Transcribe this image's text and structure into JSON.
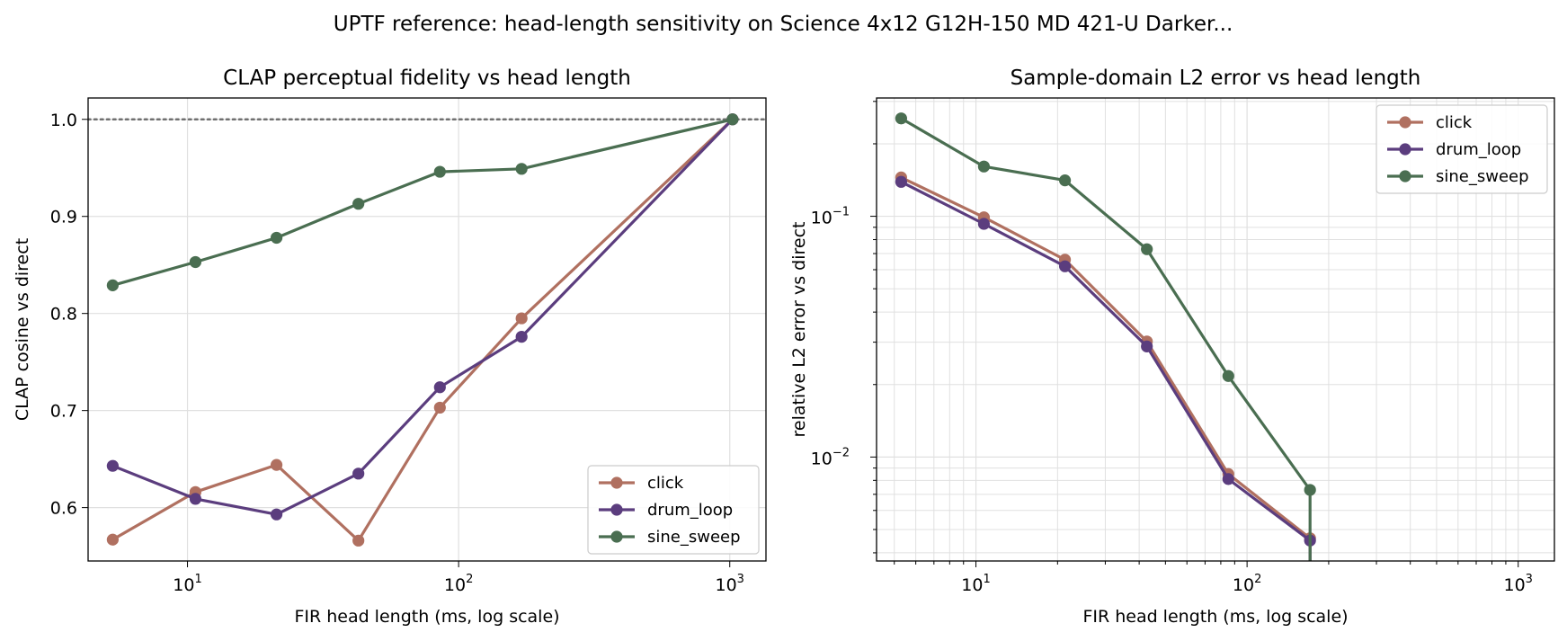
{
  "suptitle": "UPTF reference: head-length sensitivity on Science 4x12 G12H-150 MD 421-U Darker...",
  "colors": {
    "click": "#b07060",
    "drum_loop": "#5b3d7e",
    "sine_sweep": "#4a6e51",
    "reference_line": "#707070",
    "grid": "#e0e0e0"
  },
  "chart_data": [
    {
      "type": "line",
      "title": "CLAP perceptual fidelity vs head length",
      "xlabel": "FIR head length (ms, log scale)",
      "ylabel": "CLAP cosine vs direct",
      "xscale": "log",
      "xlim": [
        4.3,
        1360
      ],
      "ylim": [
        0.545,
        1.022
      ],
      "x_ticks": [
        10,
        100,
        1000
      ],
      "x_tick_labels": [
        [
          "10",
          "1"
        ],
        [
          "10",
          "2"
        ],
        [
          "10",
          "3"
        ]
      ],
      "y_ticks": [
        0.6,
        0.7,
        0.8,
        0.9,
        1.0
      ],
      "y_tick_labels": [
        "0.6",
        "0.7",
        "0.8",
        "0.9",
        "1.0"
      ],
      "reference_line": 1.0,
      "grid": true,
      "legend_position": "bottom-right",
      "x": [
        5.3,
        10.7,
        21.3,
        42.7,
        85.3,
        170.7,
        1024
      ],
      "series": [
        {
          "name": "click",
          "color": "#b07060",
          "values": [
            0.567,
            0.616,
            0.644,
            0.566,
            0.703,
            0.795,
            1.0
          ]
        },
        {
          "name": "drum_loop",
          "color": "#5b3d7e",
          "values": [
            0.643,
            0.609,
            0.593,
            0.635,
            0.724,
            0.776,
            1.0
          ]
        },
        {
          "name": "sine_sweep",
          "color": "#4a6e51",
          "values": [
            0.829,
            0.853,
            0.878,
            0.913,
            0.946,
            0.949,
            1.0
          ]
        }
      ]
    },
    {
      "type": "line",
      "title": "Sample-domain L2 error vs head length",
      "xlabel": "FIR head length (ms, log scale)",
      "ylabel": "relative L2 error vs direct",
      "xscale": "log",
      "yscale": "log",
      "xlim": [
        4.3,
        1360
      ],
      "ylim": [
        0.0037,
        0.31
      ],
      "x_ticks": [
        10,
        100,
        1000
      ],
      "x_tick_labels": [
        [
          "10",
          "1"
        ],
        [
          "10",
          "2"
        ],
        [
          "10",
          "3"
        ]
      ],
      "y_ticks": [
        0.01,
        0.1
      ],
      "y_tick_labels": [
        [
          "10",
          "−2"
        ],
        [
          "10",
          "−1"
        ]
      ],
      "grid": true,
      "legend_position": "top-right",
      "x": [
        5.3,
        10.7,
        21.3,
        42.7,
        85.3,
        170.7
      ],
      "series": [
        {
          "name": "click",
          "color": "#b07060",
          "values": [
            0.145,
            0.099,
            0.066,
            0.0302,
            0.0085,
            0.0046
          ]
        },
        {
          "name": "drum_loop",
          "color": "#5b3d7e",
          "values": [
            0.139,
            0.093,
            0.062,
            0.0288,
            0.0081,
            0.0045
          ]
        },
        {
          "name": "sine_sweep",
          "color": "#4a6e51",
          "values": [
            0.255,
            0.161,
            0.141,
            0.073,
            0.0217,
            0.0073
          ]
        }
      ]
    }
  ]
}
